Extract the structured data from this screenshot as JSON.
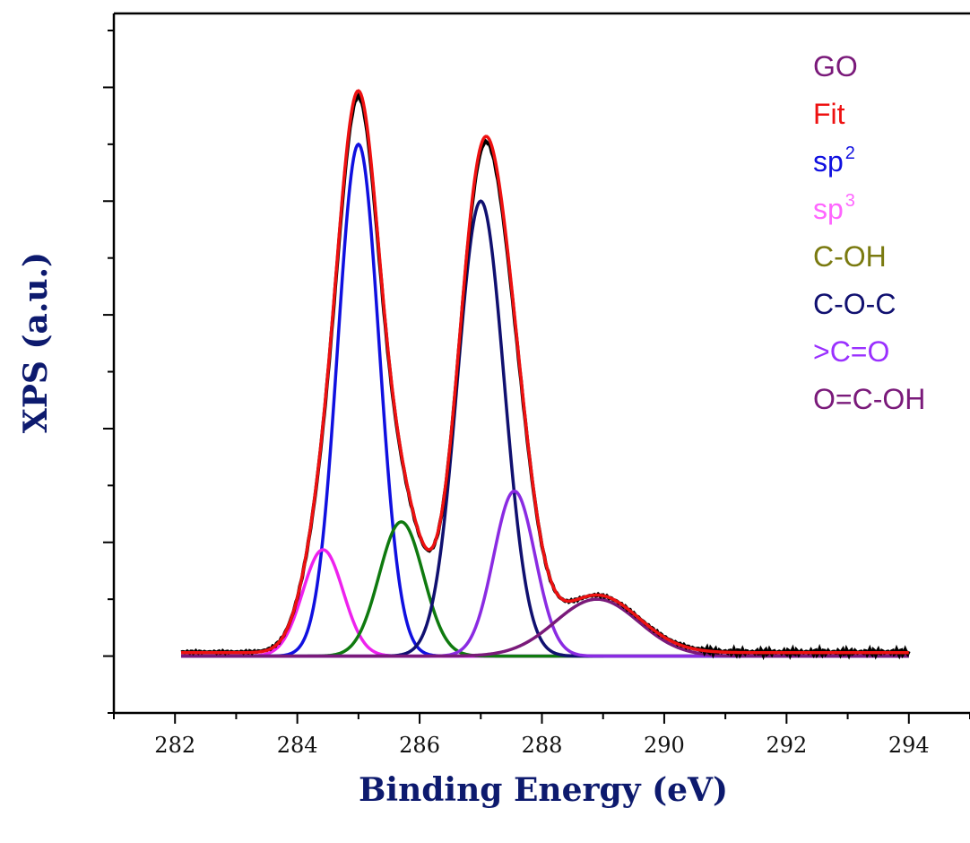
{
  "chart_data": {
    "type": "line",
    "xlabel": "Binding Energy (eV)",
    "ylabel": "XPS (a.u.)",
    "xlim": [
      281,
      295
    ],
    "ylim": [
      -0.1,
      1.13
    ],
    "x_ticks": [
      "282",
      "284",
      "286",
      "288",
      "290",
      "292",
      "294"
    ],
    "y_ticklabels": "none",
    "grid": false,
    "legend_position": "top-right",
    "x_range_data": [
      282.1,
      294.0
    ],
    "components": [
      {
        "name": "sp",
        "sup": "2",
        "color": "#1010e0",
        "center": 285.0,
        "amplitude": 0.9,
        "fwhm": 0.8
      },
      {
        "name": "sp",
        "sup": "3",
        "color": "#ee22ee",
        "center": 284.42,
        "amplitude": 0.187,
        "fwhm": 0.78
      },
      {
        "name": "C-OH",
        "color": "#0f7a0f",
        "center": 285.7,
        "amplitude": 0.236,
        "fwhm": 0.85
      },
      {
        "name": "C-O-C",
        "color": "#101070",
        "center": 287.0,
        "amplitude": 0.8,
        "fwhm": 0.9
      },
      {
        "name": ">C=O",
        "color": "#8a2be2",
        "center": 287.55,
        "amplitude": 0.29,
        "fwhm": 0.8
      },
      {
        "name": "O=C-OH",
        "color": "#7a1a7a",
        "center": 288.9,
        "amplitude": 0.1,
        "fwhm": 1.6
      }
    ],
    "series": [
      {
        "name": "GO",
        "color": "#000000",
        "type": "measured"
      },
      {
        "name": "Fit",
        "color": "#ee1111",
        "type": "sum"
      }
    ],
    "legend": [
      {
        "text": "GO",
        "sup": "",
        "color": "#7a1a7a"
      },
      {
        "text": "Fit",
        "sup": "",
        "color": "#ee1111"
      },
      {
        "text": "sp",
        "sup": "2",
        "color": "#1010e0"
      },
      {
        "text": "sp",
        "sup": "3",
        "color": "#ff66ff"
      },
      {
        "text": "C-OH",
        "sup": "",
        "color": "#7a7a10"
      },
      {
        "text": "C-O-C",
        "sup": "",
        "color": "#101070"
      },
      {
        "text": ">C=O",
        "sup": "",
        "color": "#9a30ff"
      },
      {
        "text": "O=C-OH",
        "sup": "",
        "color": "#7a1a7a"
      }
    ],
    "colors": {
      "axis": "#000000",
      "label": "#0d1a6e"
    }
  }
}
